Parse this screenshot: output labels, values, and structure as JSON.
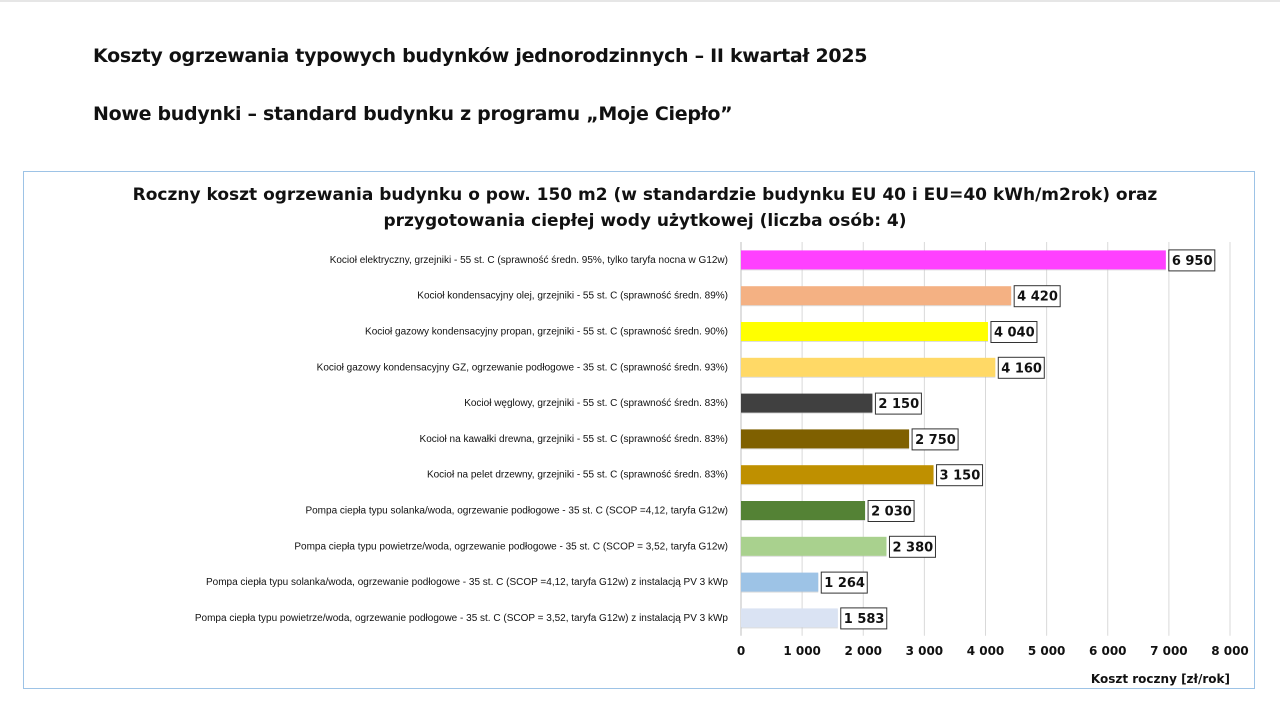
{
  "header": {
    "title": "Koszty ogrzewania typowych budynków jednorodzinnych – II kwartał 2025",
    "subtitle": "Nowe budynki – standard budynku z programu „Moje Ciepło”"
  },
  "chart_data": {
    "type": "bar",
    "orientation": "horizontal",
    "title_lines": [
      "Roczny koszt ogrzewania budynku o pow. 150 m2 (w standardzie budynku EU 40 i EU=40 kWh/m2rok) oraz",
      "przygotowania ciepłej wody użytkowej (liczba osób: 4)"
    ],
    "xlabel": "Koszt roczny [zł/rok]",
    "ylabel": "",
    "xlim": [
      0,
      8000
    ],
    "x_ticks": [
      "0",
      "1 000",
      "2 000",
      "3 000",
      "4 000",
      "5 000",
      "6 000",
      "7 000",
      "8 000"
    ],
    "grid": "vertical",
    "categories": [
      "Kocioł  elektryczny,  grzejniki - 55 st. C  (sprawność średn. 95%, tylko taryfa nocna w G12w)",
      "Kocioł  kondensacyjny olej,  grzejniki - 55 st. C (sprawność średn. 89%)",
      "Kocioł gazowy kondensacyjny propan, grzejniki - 55 st. C (sprawność średn.  90%)",
      "Kocioł gazowy kondensacyjny GZ, ogrzewanie podłogowe - 35 st. C (sprawność średn. 93%)",
      "Kocioł węglowy,  grzejniki - 55 st. C (sprawność średn. 83%)",
      "Kocioł na kawałki drewna, grzejniki - 55 st. C (sprawność średn. 83%)",
      "Kocioł na pelet drzewny, grzejniki - 55 st. C (sprawność średn. 83%)",
      "Pompa ciepła typu solanka/woda, ogrzewanie podłogowe - 35 st. C (SCOP =4,12, taryfa G12w)",
      "Pompa ciepła typu powietrze/woda, ogrzewanie podłogowe - 35 st. C (SCOP = 3,52, taryfa G12w)",
      "Pompa ciepła typu solanka/woda, ogrzewanie podłogowe - 35 st. C (SCOP =4,12, taryfa G12w) z instalacją PV 3 kWp",
      "Pompa ciepła typu powietrze/woda, ogrzewanie podłogowe - 35 st. C (SCOP = 3,52, taryfa G12w) z instalacją PV 3 kWp"
    ],
    "values": [
      6950,
      4420,
      4040,
      4160,
      2150,
      2750,
      3150,
      2030,
      2380,
      1264,
      1583
    ],
    "value_labels": [
      "6 950",
      "4 420",
      "4 040",
      "4 160",
      "2 150",
      "2 750",
      "3 150",
      "2 030",
      "2 380",
      "1 264",
      "1 583"
    ],
    "colors": [
      "#ff40ff",
      "#f4b183",
      "#ffff00",
      "#ffd966",
      "#404040",
      "#7f6000",
      "#bf9000",
      "#548235",
      "#a9d18e",
      "#9dc3e6",
      "#dae3f3"
    ]
  }
}
